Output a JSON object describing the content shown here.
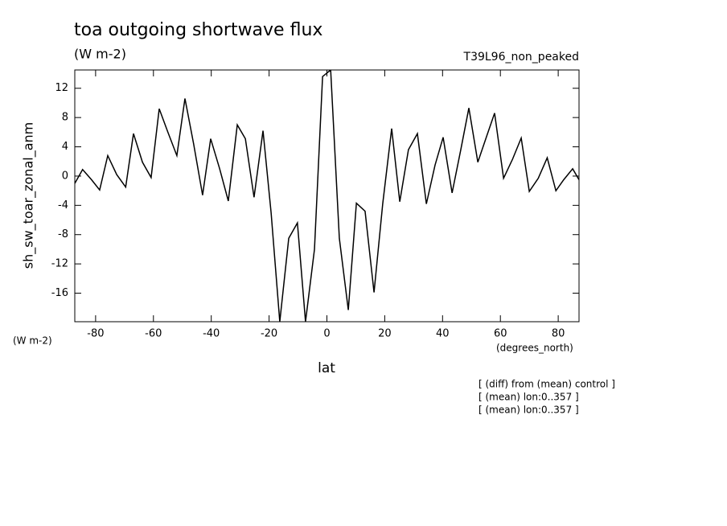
{
  "chart_data": {
    "type": "line",
    "title": "toa outgoing shortwave flux",
    "subtitle": "(W m-2)",
    "dataset": "T39L96_non_peaked",
    "y_label": "sh_sw_toar_zonal_anm",
    "y_units": "(W m-2)",
    "x_units": "(degrees_north)",
    "x_label": "lat",
    "annotations": [
      "[ (diff) from (mean) control ]",
      "[ (mean) lon:0..357 ]",
      "[ (mean) lon:0..357 ]"
    ],
    "x": [
      -87.2,
      -84.5,
      -81.4,
      -78.6,
      -75.8,
      -72.7,
      -69.6,
      -66.9,
      -63.8,
      -60.8,
      -58.0,
      -55.0,
      -51.9,
      -49.1,
      -46.1,
      -43.0,
      -40.2,
      -37.1,
      -34.1,
      -31.0,
      -28.2,
      -25.2,
      -22.1,
      -19.3,
      -16.3,
      -13.2,
      -10.2,
      -7.4,
      -4.3,
      -1.5,
      1.3,
      4.3,
      7.4,
      10.2,
      13.2,
      16.3,
      19.3,
      22.4,
      25.2,
      28.2,
      31.3,
      34.4,
      37.4,
      40.2,
      43.3,
      46.3,
      49.1,
      52.2,
      55.3,
      58.0,
      61.1,
      64.2,
      67.2,
      70.0,
      73.1,
      76.2,
      79.2,
      81.9,
      85.0,
      87.2
    ],
    "series": [
      {
        "name": "sh_sw_toar_zonal_anm",
        "color": "#000000",
        "values": [
          -1.0,
          0.9,
          -0.5,
          -1.9,
          2.8,
          0.2,
          -1.5,
          5.8,
          1.9,
          -0.2,
          9.2,
          6.0,
          2.8,
          10.6,
          4.4,
          -2.6,
          5.1,
          1.0,
          -3.4,
          7.0,
          5.1,
          -2.9,
          6.2,
          -5.0,
          -19.9,
          -8.5,
          -6.4,
          -19.9,
          -10.0,
          13.6,
          14.5,
          -8.5,
          -18.3,
          -3.7,
          -4.8,
          -15.9,
          -3.8,
          6.5,
          -3.5,
          3.6,
          5.8,
          -3.8,
          1.5,
          5.3,
          -2.3,
          3.6,
          9.3,
          1.9,
          5.5,
          8.6,
          -0.3,
          2.3,
          5.2,
          -2.1,
          -0.3,
          2.5,
          -2.0,
          -0.5,
          1.0,
          -0.5
        ]
      }
    ],
    "xlim": [
      -87.2,
      87.2
    ],
    "ylim": [
      -19.9,
      14.5
    ],
    "xticks": [
      -80,
      -60,
      -40,
      -20,
      0,
      20,
      40,
      60,
      80
    ],
    "yticks": [
      -16,
      -12,
      -8,
      -4,
      0,
      4,
      8,
      12
    ],
    "grid": false
  }
}
